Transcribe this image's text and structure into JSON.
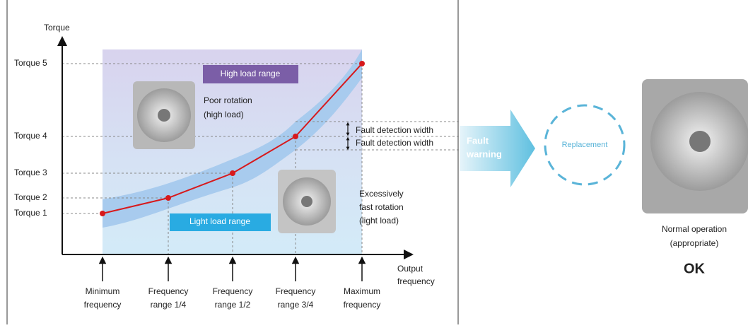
{
  "chart_panel": {
    "y_axis_label": "Torque",
    "x_axis_label": [
      "Output",
      "frequency"
    ],
    "torque_levels": [
      "Torque 5",
      "Torque 4",
      "Torque 3",
      "Torque 2",
      "Torque 1"
    ],
    "frequencies": [
      [
        "Minimum",
        "frequency"
      ],
      [
        "Frequency",
        "range 1/4"
      ],
      [
        "Frequency",
        "range 1/2"
      ],
      [
        "Frequency",
        "range 3/4"
      ],
      [
        "Maximum",
        "frequency"
      ]
    ],
    "high_load_range": "High load range",
    "light_load_range": "Light load range",
    "poor_rotation": [
      "Poor rotation",
      "(high load)"
    ],
    "fast_rotation": [
      "Excessively",
      "fast rotation",
      "(light load)"
    ],
    "fault_detection": [
      "Fault detection width",
      "Fault detection width"
    ]
  },
  "fault_arrow": [
    "Fault",
    "warning"
  ],
  "replacement": "Replacement",
  "result": {
    "caption": [
      "Normal operation",
      "(appropriate)"
    ],
    "status": "OK"
  }
}
